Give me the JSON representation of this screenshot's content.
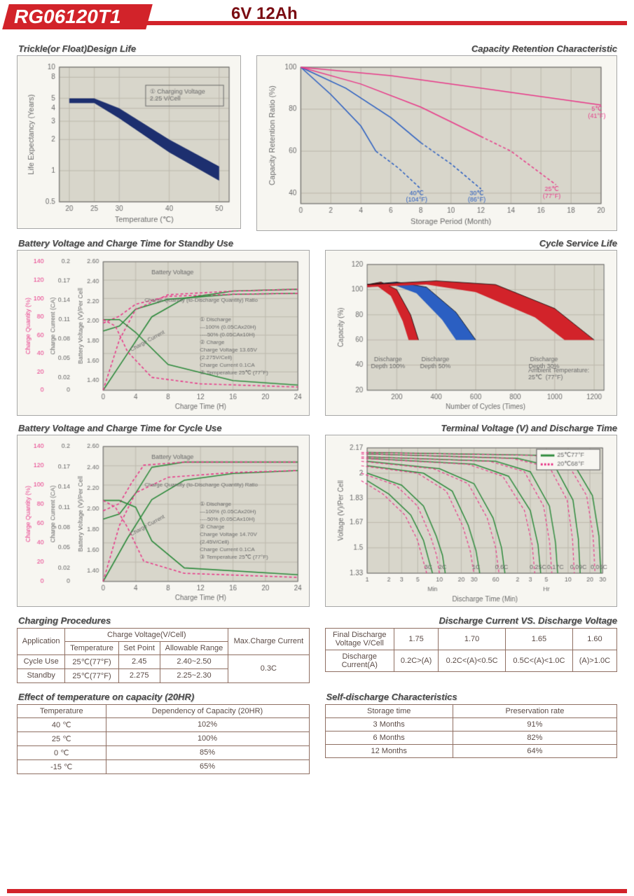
{
  "header": {
    "model": "RG06120T1",
    "spec": "6V  12Ah"
  },
  "colors": {
    "accent": "#d2232a",
    "panel_border": "#a7a7a7",
    "panel_bg": "#f7f6f1",
    "grid": "#bdb9ad",
    "axis": "#6b6b6b",
    "navy": "#1d2f6f",
    "magenta": "#e83b8a",
    "green": "#2e8b3d",
    "blue": "#2b5fc2",
    "red": "#d2232a",
    "black": "#333333"
  },
  "chart1": {
    "title": "Trickle(or Float)Design Life",
    "xlabel": "Temperature (℃)",
    "ylabel": "Life Expectancy (Years)",
    "annotation": "① Charging Voltage\\n2.25 V/Cell",
    "x_ticks": [
      20,
      25,
      30,
      40,
      50
    ],
    "y_ticks": [
      0.5,
      1,
      2,
      3,
      4,
      5,
      8,
      10
    ],
    "y_log": true,
    "band_top": {
      "x": [
        20,
        25,
        30,
        40,
        50
      ],
      "y": [
        5.0,
        5.0,
        4.0,
        2.0,
        1.1
      ]
    },
    "band_bot": {
      "x": [
        20,
        25,
        30,
        40,
        50
      ],
      "y": [
        4.5,
        4.5,
        3.2,
        1.5,
        0.8
      ]
    },
    "band_color": "#1d2f6f"
  },
  "chart2": {
    "title": "Capacity  Retention  Characteristic",
    "xlabel": "Storage Period (Month)",
    "ylabel": "Capacity Retention Ratio (%)",
    "x_ticks": [
      0,
      2,
      4,
      6,
      8,
      10,
      12,
      14,
      16,
      18,
      20
    ],
    "y_ticks": [
      40,
      60,
      80,
      100
    ],
    "series": [
      {
        "label": "40℃\\n(104°F)",
        "color": "#2b5fc2",
        "x": [
          0,
          2,
          4,
          5,
          6.5,
          8
        ],
        "y": [
          100,
          87,
          72,
          60,
          52,
          42
        ],
        "dash_from": 5
      },
      {
        "label": "30℃\\n(86°F)",
        "color": "#2b5fc2",
        "x": [
          0,
          3,
          6,
          8,
          10,
          12
        ],
        "y": [
          100,
          90,
          76,
          64,
          54,
          42
        ],
        "dash_from": 8
      },
      {
        "label": "25℃\\n(77°F)",
        "color": "#e83b8a",
        "x": [
          0,
          4,
          8,
          12,
          14,
          17
        ],
        "y": [
          100,
          92,
          81,
          67,
          60,
          44
        ],
        "dash_from": 12
      },
      {
        "label": "5℃\\n(41°F)",
        "color": "#e83b8a",
        "x": [
          0,
          6,
          12,
          18,
          20
        ],
        "y": [
          100,
          96,
          90,
          84,
          82
        ],
        "dash_from": 99
      }
    ]
  },
  "chart3": {
    "title": "Battery Voltage and Charge Time for Standby Use",
    "xlabel": "Charge Time (H)",
    "y1": "Charge Quantity (%)",
    "y2": "Charge Current (CA)",
    "y3": "Battery Voltage (V)/Per Cell",
    "x_ticks": [
      0,
      4,
      8,
      12,
      16,
      20,
      24
    ],
    "y1_ticks": [
      0,
      20,
      40,
      60,
      80,
      100,
      120,
      140
    ],
    "y2_ticks": [
      0,
      0.02,
      0.05,
      0.08,
      0.11,
      0.14,
      0.17,
      0.2
    ],
    "y3_ticks": [
      0,
      1.4,
      1.6,
      1.8,
      2.0,
      2.2,
      2.4,
      2.6
    ],
    "legend": [
      "Battery Voltage",
      "Charge Quantity (to-Discharge Quantity) Ratio",
      "Charge Current"
    ],
    "info_lines": [
      "① Discharge",
      "—100% (0.05CAx20H)",
      "----50% (0.05CAx10H)",
      "② Charge",
      "Charge Voltage 13.65V",
      "(2.275V/Cell)",
      "Charge Current 0.1CA",
      "③ Temperature 25℃ (77°F)"
    ],
    "green_v100": {
      "x": [
        0,
        2,
        4,
        8,
        16,
        24
      ],
      "y": [
        1.9,
        1.95,
        2.12,
        2.22,
        2.27,
        2.28
      ]
    },
    "green_q100": {
      "x": [
        0,
        3,
        6,
        10,
        16,
        24
      ],
      "y": [
        0,
        40,
        80,
        100,
        108,
        110
      ]
    },
    "green_i100": {
      "x": [
        0,
        2,
        4,
        8,
        16,
        24
      ],
      "y": [
        0.11,
        0.11,
        0.09,
        0.04,
        0.015,
        0.008
      ]
    },
    "mag_v50": {
      "x": [
        0,
        2,
        4,
        8,
        16,
        24
      ],
      "y": [
        1.98,
        2.05,
        2.17,
        2.25,
        2.27,
        2.28
      ]
    },
    "mag_q50": {
      "x": [
        0,
        2,
        4,
        8,
        16,
        24
      ],
      "y": [
        0,
        55,
        88,
        104,
        108,
        110
      ]
    },
    "mag_i50": {
      "x": [
        0,
        1.5,
        3,
        6,
        12,
        24
      ],
      "y": [
        0.11,
        0.1,
        0.06,
        0.02,
        0.01,
        0.005
      ]
    }
  },
  "chart4": {
    "title": "Cycle Service Life",
    "xlabel": "Number of Cycles (Times)",
    "ylabel": "Capacity (%)",
    "x_ticks": [
      200,
      400,
      600,
      800,
      1000,
      1200
    ],
    "y_ticks": [
      20,
      40,
      60,
      80,
      100,
      120
    ],
    "ambient": "Ambient Temperature:\\n25℃  (77°F)",
    "wedges": [
      {
        "label": "Discharge\\nDepth 100%",
        "color": "#d2232a",
        "top": {
          "x": [
            50,
            120,
            200,
            270,
            310
          ],
          "y": [
            104,
            106,
            100,
            80,
            60
          ]
        },
        "bot": {
          "x": [
            50,
            100,
            170,
            230,
            260
          ],
          "y": [
            102,
            103,
            95,
            75,
            60
          ]
        }
      },
      {
        "label": "Discharge\\nDepth 50%",
        "color": "#2b5fc2",
        "top": {
          "x": [
            50,
            200,
            350,
            500,
            600
          ],
          "y": [
            104,
            106,
            102,
            82,
            60
          ]
        },
        "bot": {
          "x": [
            50,
            180,
            300,
            430,
            500
          ],
          "y": [
            102,
            104,
            97,
            76,
            60
          ]
        }
      },
      {
        "label": "Discharge\\nDepth 30%",
        "color": "#d2232a",
        "top": {
          "x": [
            50,
            400,
            700,
            1000,
            1200
          ],
          "y": [
            104,
            107,
            104,
            85,
            60
          ]
        },
        "bot": {
          "x": [
            50,
            350,
            600,
            900,
            1050
          ],
          "y": [
            102,
            104,
            98,
            78,
            60
          ]
        }
      }
    ]
  },
  "chart5": {
    "title": "Battery Voltage and Charge Time for Cycle Use",
    "info_lines": [
      "① Discharge",
      "—100% (0.05CAx20H)",
      "----50% (0.05CAx10H)",
      "② Charge",
      "Charge Voltage 14.70V",
      "(2.45V/Cell)",
      "Charge Current 0.1CA",
      "③ Temperature 25℃ (77°F)"
    ],
    "green_v100": {
      "x": [
        0,
        2,
        4,
        6,
        10,
        24
      ],
      "y": [
        1.9,
        1.95,
        2.15,
        2.4,
        2.45,
        2.45
      ]
    },
    "green_q100": {
      "x": [
        0,
        3,
        6,
        10,
        16,
        24
      ],
      "y": [
        0,
        45,
        85,
        105,
        112,
        115
      ]
    },
    "green_i100": {
      "x": [
        0,
        2,
        4,
        6,
        10,
        24
      ],
      "y": [
        0.12,
        0.12,
        0.11,
        0.06,
        0.02,
        0.01
      ]
    },
    "mag_v50": {
      "x": [
        0,
        2,
        3.5,
        5,
        10,
        24
      ],
      "y": [
        1.98,
        2.05,
        2.25,
        2.42,
        2.45,
        2.45
      ]
    },
    "mag_q50": {
      "x": [
        0,
        2,
        4,
        8,
        16,
        24
      ],
      "y": [
        0,
        58,
        92,
        108,
        113,
        115
      ]
    },
    "mag_i50": {
      "x": [
        0,
        1.5,
        3,
        5,
        10,
        24
      ],
      "y": [
        0.12,
        0.11,
        0.08,
        0.03,
        0.012,
        0.006
      ]
    }
  },
  "chart6": {
    "title": "Terminal Voltage (V) and Discharge Time",
    "xlabel": "Discharge Time (Min)",
    "ylabel": "Voltage (V)/Per Cell",
    "x_min_ticks": [
      1,
      2,
      3,
      5,
      10,
      20,
      30,
      60
    ],
    "x_hr_ticks": [
      2,
      3,
      5,
      10,
      20,
      30
    ],
    "y_ticks": [
      1.33,
      1.5,
      1.67,
      1.83,
      2.0,
      2.17
    ],
    "legend": [
      {
        "label": "25℃77°F",
        "color": "#2e8b3d",
        "dash": false
      },
      {
        "label": "20℃68°F",
        "color": "#e83b8a",
        "dash": true
      }
    ],
    "curves": [
      {
        "label": "3C",
        "x": [
          1,
          2,
          4,
          6,
          7,
          8
        ],
        "y": [
          1.95,
          1.86,
          1.72,
          1.55,
          1.43,
          1.33
        ]
      },
      {
        "label": "2C",
        "x": [
          1,
          3,
          6,
          9,
          11,
          12
        ],
        "y": [
          2.0,
          1.92,
          1.78,
          1.58,
          1.45,
          1.33
        ]
      },
      {
        "label": "1C",
        "x": [
          1,
          6,
          15,
          25,
          32,
          36
        ],
        "y": [
          2.05,
          2.0,
          1.88,
          1.65,
          1.48,
          1.33
        ]
      },
      {
        "label": "0.6C",
        "x": [
          1,
          10,
          30,
          55,
          72,
          80
        ],
        "y": [
          2.08,
          2.03,
          1.93,
          1.7,
          1.5,
          1.33
        ]
      },
      {
        "label": "0.25C",
        "x": [
          1,
          30,
          90,
          180,
          230,
          250
        ],
        "y": [
          2.1,
          2.06,
          1.98,
          1.75,
          1.52,
          1.33
        ]
      },
      {
        "label": "0.17C",
        "x": [
          1,
          60,
          180,
          330,
          400,
          430
        ],
        "y": [
          2.11,
          2.08,
          2.01,
          1.78,
          1.54,
          1.33
        ]
      },
      {
        "label": "0.09C",
        "x": [
          1,
          120,
          400,
          700,
          830,
          880
        ],
        "y": [
          2.13,
          2.1,
          2.04,
          1.82,
          1.56,
          1.33
        ]
      },
      {
        "label": "0.05C",
        "x": [
          1,
          240,
          700,
          1300,
          1600,
          1700
        ],
        "y": [
          2.14,
          2.12,
          2.07,
          1.85,
          1.58,
          1.33
        ]
      }
    ]
  },
  "table_charging": {
    "title": "Charging Procedures",
    "headers": {
      "app": "Application",
      "cv": "Charge Voltage(V/Cell)",
      "temp": "Temperature",
      "sp": "Set Point",
      "ar": "Allowable Range",
      "max": "Max.Charge Current"
    },
    "rows": [
      {
        "app": "Cycle Use",
        "temp": "25℃(77°F)",
        "sp": "2.45",
        "ar": "2.40~2.50"
      },
      {
        "app": "Standby",
        "temp": "25℃(77°F)",
        "sp": "2.275",
        "ar": "2.25~2.30"
      }
    ],
    "max": "0.3C"
  },
  "table_discharge": {
    "title": "Discharge Current VS. Discharge Voltage",
    "row1_label": "Final Discharge\\nVoltage V/Cell",
    "row1": [
      "1.75",
      "1.70",
      "1.65",
      "1.60"
    ],
    "row2_label": "Discharge\\nCurrent(A)",
    "row2": [
      "0.2C>(A)",
      "0.2C<(A)<0.5C",
      "0.5C<(A)<1.0C",
      "(A)>1.0C"
    ]
  },
  "table_tempcap": {
    "title": "Effect of temperature on capacity (20HR)",
    "head": [
      "Temperature",
      "Dependency of Capacity (20HR)"
    ],
    "rows": [
      [
        "40 ℃",
        "102%"
      ],
      [
        "25 ℃",
        "100%"
      ],
      [
        "0 ℃",
        "85%"
      ],
      [
        "-15 ℃",
        "65%"
      ]
    ]
  },
  "table_selfdis": {
    "title": "Self-discharge Characteristics",
    "head": [
      "Storage time",
      "Preservation rate"
    ],
    "rows": [
      [
        "3 Months",
        "91%"
      ],
      [
        "6 Months",
        "82%"
      ],
      [
        "12 Months",
        "64%"
      ]
    ]
  }
}
